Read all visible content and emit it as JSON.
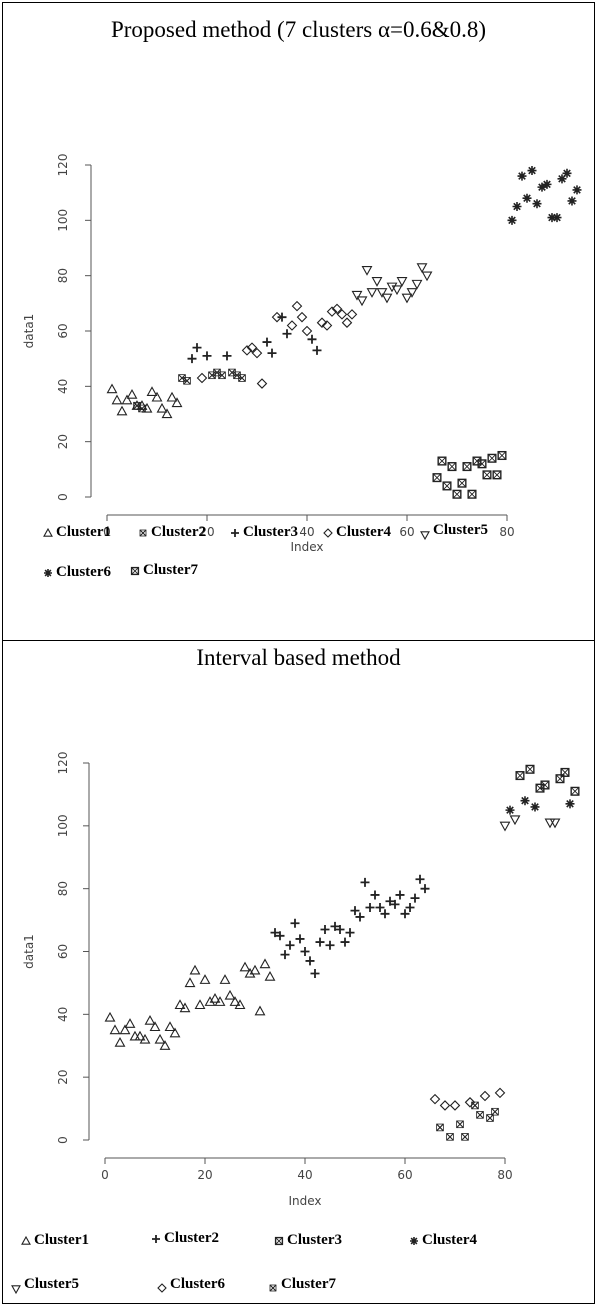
{
  "panels": [
    {
      "title": "Proposed method (7 clusters α=0.6&0.8)",
      "legend": [
        {
          "label": "Cluster1",
          "marker": "triangle-up"
        },
        {
          "label": "Cluster2",
          "marker": "x-cross"
        },
        {
          "label": "Cluster3",
          "marker": "plus"
        },
        {
          "label": "Cluster4",
          "marker": "diamond"
        },
        {
          "label": "Cluster5",
          "marker": "triangle-down"
        },
        {
          "label": "Cluster6",
          "marker": "asterisk"
        },
        {
          "label": "Cluster7",
          "marker": "square-cross"
        }
      ],
      "chart_data": {
        "type": "scatter",
        "xlabel": "Index",
        "ylabel": "data1",
        "xlim": [
          0,
          95
        ],
        "ylim": [
          0,
          120
        ],
        "xticks": [
          0,
          20,
          40,
          60,
          80
        ],
        "yticks": [
          0,
          20,
          40,
          60,
          80,
          100,
          120
        ],
        "series": [
          {
            "name": "Cluster1",
            "marker": "triangle-up",
            "x": [
              1,
              2,
              3,
              4,
              5,
              6,
              7,
              8,
              9,
              10,
              11,
              12,
              13,
              14
            ],
            "y": [
              39,
              35,
              31,
              35,
              37,
              33,
              33,
              32,
              38,
              36,
              32,
              30,
              36,
              34
            ]
          },
          {
            "name": "Cluster2",
            "marker": "x-cross",
            "x": [
              6,
              7,
              15,
              16,
              21,
              22,
              23,
              25,
              26,
              27
            ],
            "y": [
              33,
              32,
              43,
              42,
              44,
              45,
              44,
              45,
              44,
              43
            ]
          },
          {
            "name": "Cluster3",
            "marker": "plus",
            "x": [
              17,
              18,
              20,
              24,
              32,
              33,
              35,
              36,
              41,
              42
            ],
            "y": [
              50,
              54,
              51,
              51,
              56,
              52,
              65,
              59,
              57,
              53
            ]
          },
          {
            "name": "Cluster4",
            "marker": "diamond",
            "x": [
              19,
              28,
              29,
              30,
              31,
              34,
              37,
              38,
              39,
              40,
              43,
              44,
              45,
              46,
              47,
              48,
              49
            ],
            "y": [
              43,
              53,
              54,
              52,
              41,
              65,
              62,
              69,
              65,
              60,
              63,
              62,
              67,
              68,
              66,
              63,
              66
            ]
          },
          {
            "name": "Cluster5",
            "marker": "triangle-down",
            "x": [
              50,
              51,
              52,
              53,
              54,
              55,
              56,
              57,
              58,
              59,
              60,
              61,
              62,
              63,
              64
            ],
            "y": [
              73,
              71,
              82,
              74,
              78,
              74,
              72,
              76,
              75,
              78,
              72,
              74,
              77,
              83,
              80
            ]
          },
          {
            "name": "Cluster6",
            "marker": "asterisk",
            "x": [
              81,
              82,
              83,
              84,
              85,
              86,
              87,
              88,
              89,
              90,
              91,
              92,
              93,
              94
            ],
            "y": [
              100,
              105,
              116,
              108,
              118,
              106,
              112,
              113,
              101,
              101,
              115,
              117,
              107,
              111
            ]
          },
          {
            "name": "Cluster7",
            "marker": "square-cross",
            "x": [
              66,
              67,
              68,
              69,
              70,
              71,
              72,
              73,
              74,
              75,
              76,
              77,
              78,
              79
            ],
            "y": [
              7,
              13,
              4,
              11,
              1,
              5,
              11,
              1,
              13,
              12,
              8,
              14,
              8,
              15
            ]
          }
        ]
      }
    },
    {
      "title": "Interval based method",
      "legend": [
        {
          "label": "Cluster1",
          "marker": "triangle-up"
        },
        {
          "label": "Cluster2",
          "marker": "plus"
        },
        {
          "label": "Cluster3",
          "marker": "square-cross"
        },
        {
          "label": "Cluster4",
          "marker": "asterisk"
        },
        {
          "label": "Cluster5",
          "marker": "triangle-down"
        },
        {
          "label": "Cluster6",
          "marker": "diamond"
        },
        {
          "label": "Cluster7",
          "marker": "x-cross"
        }
      ],
      "chart_data": {
        "type": "scatter",
        "xlabel": "Index",
        "ylabel": "data1",
        "xlim": [
          0,
          95
        ],
        "ylim": [
          0,
          120
        ],
        "xticks": [
          0,
          20,
          40,
          60,
          80
        ],
        "yticks": [
          0,
          20,
          40,
          60,
          80,
          100,
          120
        ],
        "series": [
          {
            "name": "Cluster1",
            "marker": "triangle-up",
            "x": [
              1,
              2,
              3,
              4,
              5,
              6,
              7,
              8,
              9,
              10,
              11,
              12,
              13,
              14,
              15,
              16,
              17,
              18,
              19,
              20,
              21,
              22,
              23,
              24,
              25,
              26,
              27,
              28,
              29,
              30,
              31,
              32,
              33
            ],
            "y": [
              39,
              35,
              31,
              35,
              37,
              33,
              33,
              32,
              38,
              36,
              32,
              30,
              36,
              34,
              43,
              42,
              50,
              54,
              43,
              51,
              44,
              45,
              44,
              51,
              46,
              44,
              43,
              55,
              53,
              54,
              41,
              56,
              52
            ]
          },
          {
            "name": "Cluster2",
            "marker": "plus",
            "x": [
              34,
              35,
              36,
              37,
              38,
              39,
              40,
              41,
              42,
              43,
              44,
              45,
              46,
              47,
              48,
              49,
              50,
              51,
              52,
              53,
              54,
              55,
              56,
              57,
              58,
              59,
              60,
              61,
              62,
              63,
              64
            ],
            "y": [
              66,
              65,
              59,
              62,
              69,
              64,
              60,
              57,
              53,
              63,
              67,
              62,
              68,
              67,
              63,
              66,
              73,
              71,
              82,
              74,
              78,
              74,
              72,
              76,
              75,
              78,
              72,
              74,
              77,
              83,
              80
            ]
          },
          {
            "name": "Cluster3",
            "marker": "square-cross",
            "x": [
              83,
              85,
              87,
              88,
              91,
              92,
              94
            ],
            "y": [
              116,
              118,
              112,
              113,
              115,
              117,
              111
            ]
          },
          {
            "name": "Cluster4",
            "marker": "asterisk",
            "x": [
              81,
              84,
              86,
              93
            ],
            "y": [
              105,
              108,
              106,
              107
            ]
          },
          {
            "name": "Cluster5",
            "marker": "triangle-down",
            "x": [
              80,
              82,
              89,
              90
            ],
            "y": [
              100,
              102,
              101,
              101
            ]
          },
          {
            "name": "Cluster6",
            "marker": "diamond",
            "x": [
              66,
              68,
              70,
              73,
              76,
              79
            ],
            "y": [
              13,
              11,
              11,
              12,
              14,
              15
            ]
          },
          {
            "name": "Cluster7",
            "marker": "x-cross",
            "x": [
              67,
              69,
              71,
              72,
              74,
              75,
              77,
              78
            ],
            "y": [
              4,
              1,
              5,
              1,
              11,
              8,
              7,
              9
            ]
          }
        ]
      }
    }
  ]
}
